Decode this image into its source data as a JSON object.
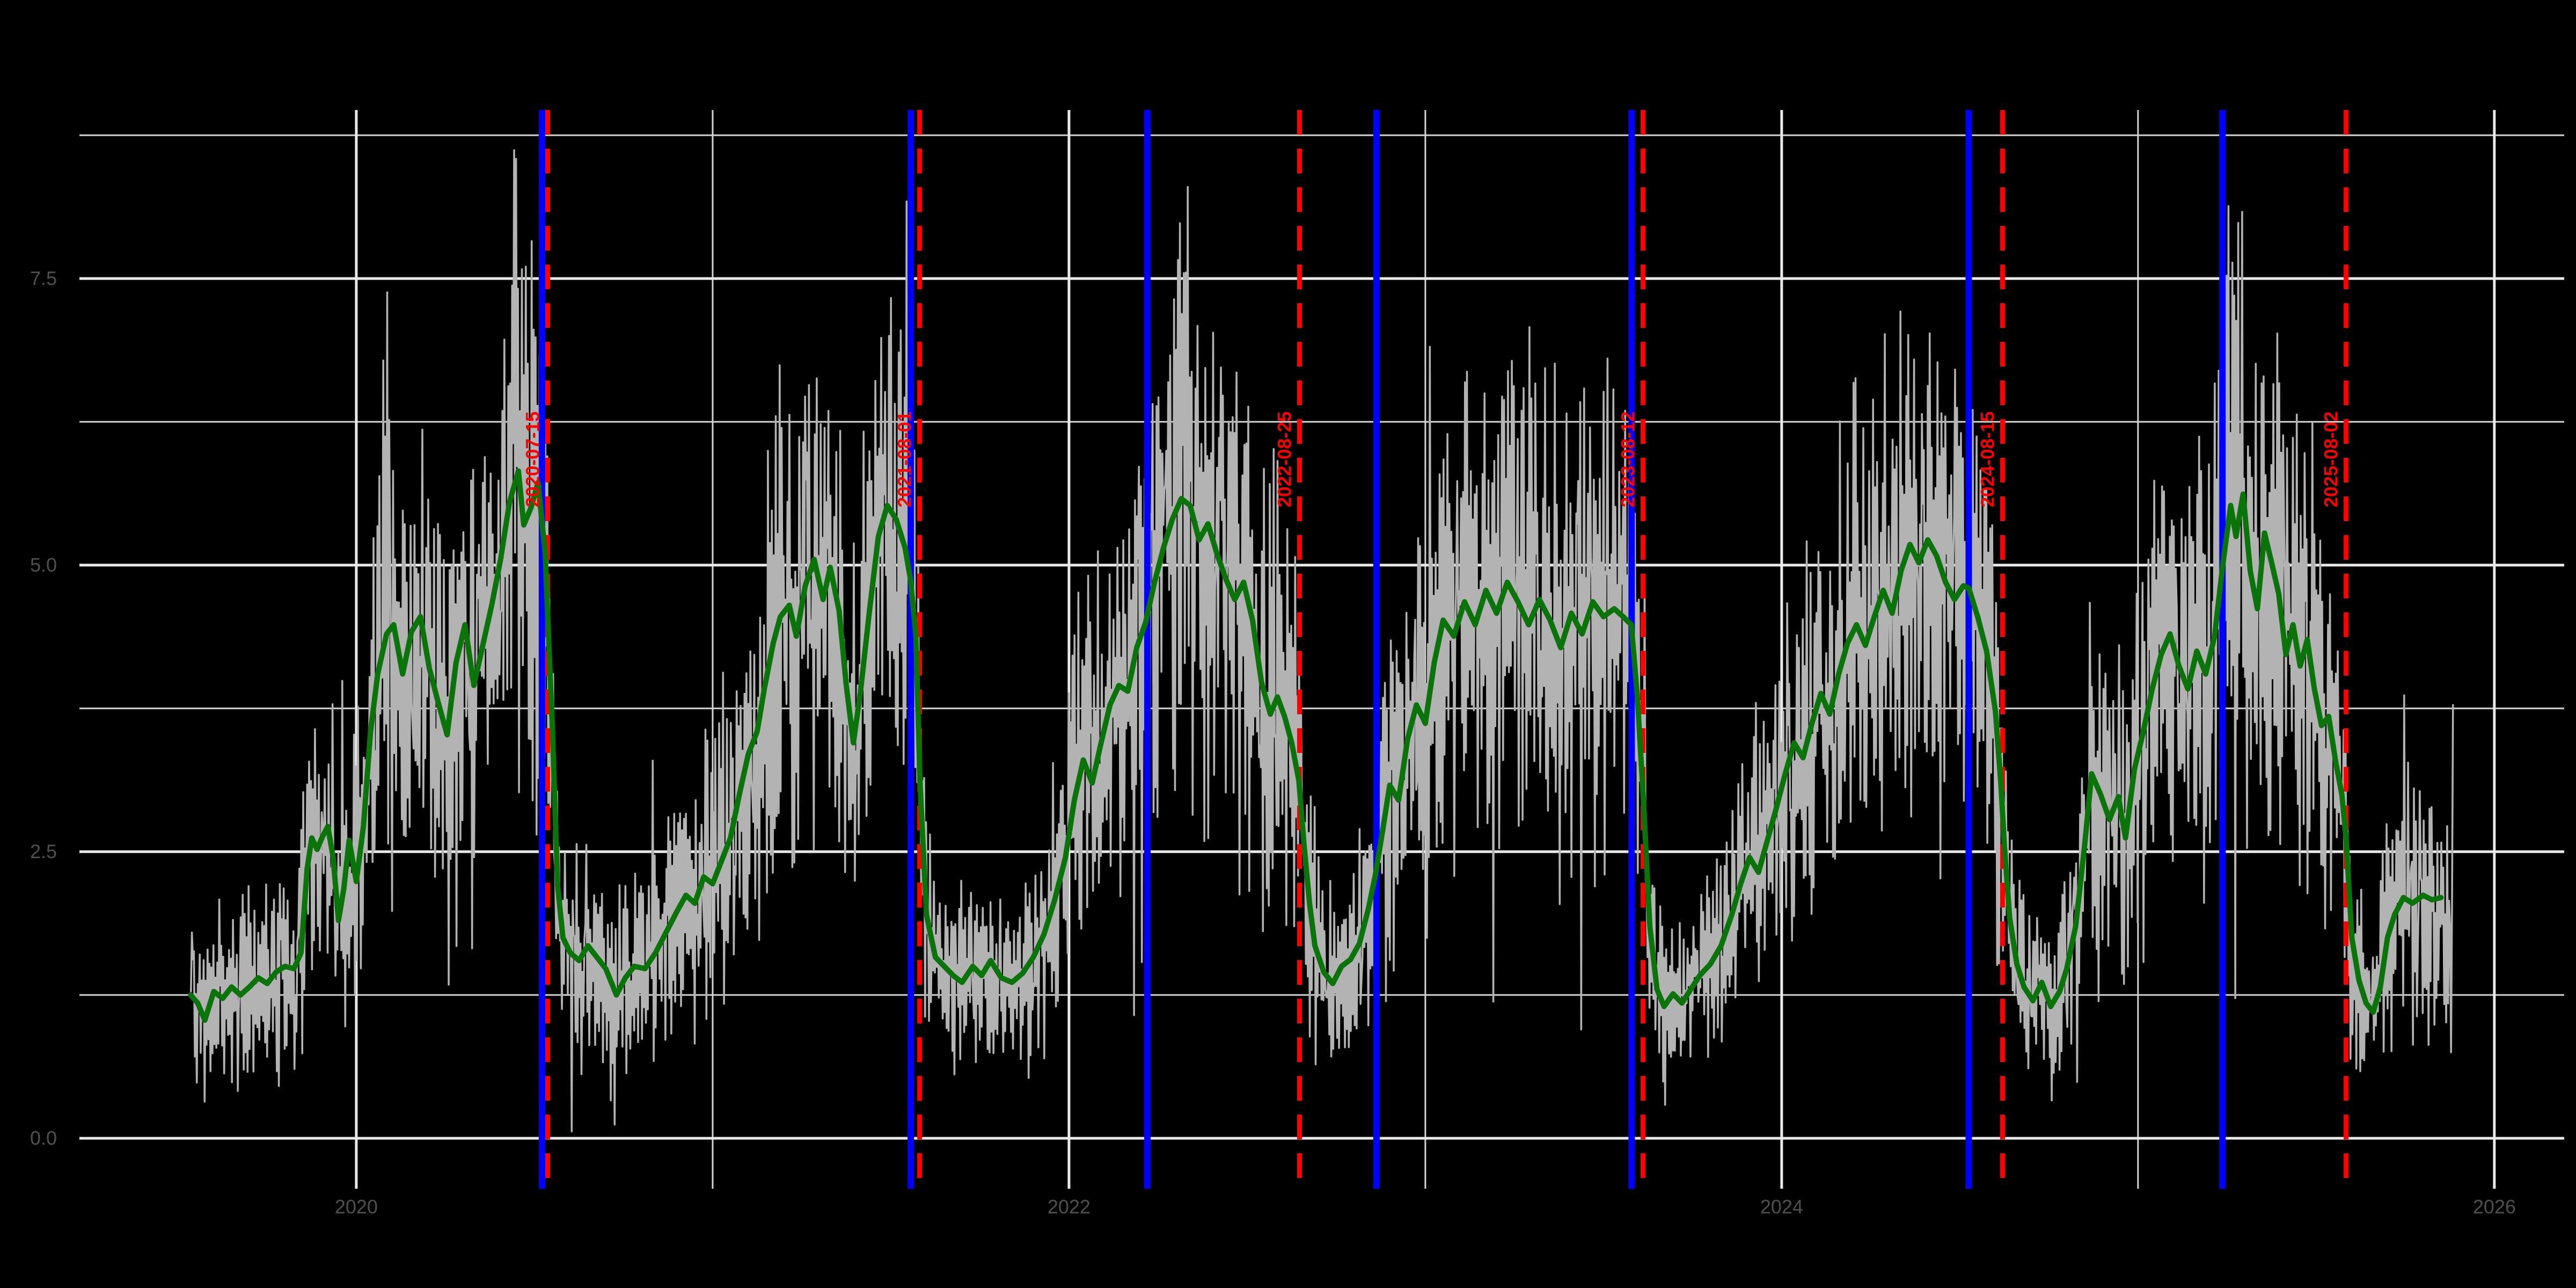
{
  "figure": {
    "background_color": "#000000",
    "colors": {
      "grid_major": "#e9e9e9",
      "grid_minor": "#d4d4d4",
      "daily_series": "#b3b3b3",
      "smoothed_series": "#0a730a",
      "event_line_blue": "#0000ff",
      "event_line_red": "#ff0000",
      "tick_label": "#4f4f4f",
      "event_label": "#ff0000"
    }
  },
  "chart_data": {
    "type": "line",
    "title": "",
    "xlabel": "",
    "ylabel": "",
    "grid": "on",
    "legend": "none",
    "xlim": [
      2019.223,
      2026.196
    ],
    "ylim": [
      -0.44,
      8.97
    ],
    "x_axis": {
      "major_ticks": [
        {
          "value": 2020,
          "label": "2020"
        },
        {
          "value": 2022,
          "label": "2022"
        },
        {
          "value": 2024,
          "label": "2024"
        },
        {
          "value": 2026,
          "label": "2026"
        }
      ],
      "minor_ticks": [
        2021,
        2023,
        2025
      ]
    },
    "y_axis": {
      "major_ticks": [
        {
          "value": 0.0,
          "label": "0.0"
        },
        {
          "value": 2.5,
          "label": "2.5"
        },
        {
          "value": 5.0,
          "label": "5.0"
        },
        {
          "value": 7.5,
          "label": "7.5"
        }
      ],
      "minor_ticks": [
        1.25,
        3.75,
        6.25,
        8.75
      ]
    },
    "series": [
      {
        "name": "smoothed",
        "color": "#0a730a",
        "points": [
          [
            2019.535,
            1.25
          ],
          [
            2019.555,
            1.18
          ],
          [
            2019.575,
            1.03
          ],
          [
            2019.6,
            1.28
          ],
          [
            2019.625,
            1.22
          ],
          [
            2019.65,
            1.32
          ],
          [
            2019.675,
            1.25
          ],
          [
            2019.7,
            1.32
          ],
          [
            2019.725,
            1.4
          ],
          [
            2019.75,
            1.35
          ],
          [
            2019.775,
            1.45
          ],
          [
            2019.8,
            1.5
          ],
          [
            2019.825,
            1.48
          ],
          [
            2019.845,
            1.62
          ],
          [
            2019.862,
            2.35
          ],
          [
            2019.875,
            2.62
          ],
          [
            2019.89,
            2.52
          ],
          [
            2019.905,
            2.63
          ],
          [
            2019.92,
            2.72
          ],
          [
            2019.935,
            2.45
          ],
          [
            2019.95,
            1.9
          ],
          [
            2019.965,
            2.18
          ],
          [
            2019.98,
            2.6
          ],
          [
            2020.0,
            2.24
          ],
          [
            2020.02,
            2.72
          ],
          [
            2020.04,
            3.55
          ],
          [
            2020.06,
            4.05
          ],
          [
            2020.085,
            4.4
          ],
          [
            2020.105,
            4.48
          ],
          [
            2020.13,
            4.05
          ],
          [
            2020.155,
            4.42
          ],
          [
            2020.18,
            4.55
          ],
          [
            2020.205,
            4.1
          ],
          [
            2020.23,
            3.8
          ],
          [
            2020.255,
            3.52
          ],
          [
            2020.28,
            4.15
          ],
          [
            2020.305,
            4.48
          ],
          [
            2020.33,
            3.95
          ],
          [
            2020.355,
            4.3
          ],
          [
            2020.38,
            4.65
          ],
          [
            2020.405,
            5.05
          ],
          [
            2020.43,
            5.55
          ],
          [
            2020.455,
            5.82
          ],
          [
            2020.47,
            5.35
          ],
          [
            2020.49,
            5.5
          ],
          [
            2020.51,
            5.72
          ],
          [
            2020.53,
            5.1
          ],
          [
            2020.55,
            3.6
          ],
          [
            2020.565,
            2.2
          ],
          [
            2020.58,
            1.75
          ],
          [
            2020.6,
            1.62
          ],
          [
            2020.625,
            1.55
          ],
          [
            2020.65,
            1.68
          ],
          [
            2020.675,
            1.58
          ],
          [
            2020.7,
            1.48
          ],
          [
            2020.73,
            1.25
          ],
          [
            2020.755,
            1.4
          ],
          [
            2020.78,
            1.5
          ],
          [
            2020.81,
            1.48
          ],
          [
            2020.84,
            1.62
          ],
          [
            2020.87,
            1.8
          ],
          [
            2020.9,
            1.98
          ],
          [
            2020.925,
            2.12
          ],
          [
            2020.95,
            2.05
          ],
          [
            2020.975,
            2.28
          ],
          [
            2021.0,
            2.22
          ],
          [
            2021.025,
            2.42
          ],
          [
            2021.05,
            2.62
          ],
          [
            2021.075,
            3.0
          ],
          [
            2021.1,
            3.35
          ],
          [
            2021.125,
            3.55
          ],
          [
            2021.145,
            3.92
          ],
          [
            2021.17,
            4.32
          ],
          [
            2021.19,
            4.55
          ],
          [
            2021.215,
            4.65
          ],
          [
            2021.235,
            4.38
          ],
          [
            2021.26,
            4.82
          ],
          [
            2021.285,
            5.05
          ],
          [
            2021.31,
            4.7
          ],
          [
            2021.33,
            4.98
          ],
          [
            2021.355,
            4.6
          ],
          [
            2021.375,
            3.95
          ],
          [
            2021.395,
            3.45
          ],
          [
            2021.415,
            3.9
          ],
          [
            2021.44,
            4.6
          ],
          [
            2021.465,
            5.25
          ],
          [
            2021.49,
            5.52
          ],
          [
            2021.515,
            5.4
          ],
          [
            2021.54,
            5.15
          ],
          [
            2021.555,
            4.88
          ],
          [
            2021.57,
            4.4
          ],
          [
            2021.582,
            3.1
          ],
          [
            2021.6,
            1.95
          ],
          [
            2021.625,
            1.58
          ],
          [
            2021.65,
            1.5
          ],
          [
            2021.675,
            1.42
          ],
          [
            2021.7,
            1.36
          ],
          [
            2021.73,
            1.5
          ],
          [
            2021.755,
            1.42
          ],
          [
            2021.78,
            1.55
          ],
          [
            2021.81,
            1.4
          ],
          [
            2021.84,
            1.36
          ],
          [
            2021.87,
            1.44
          ],
          [
            2021.9,
            1.58
          ],
          [
            2021.93,
            1.78
          ],
          [
            2021.96,
            2.08
          ],
          [
            2021.99,
            2.45
          ],
          [
            2022.015,
            2.95
          ],
          [
            2022.04,
            3.3
          ],
          [
            2022.065,
            3.1
          ],
          [
            2022.09,
            3.45
          ],
          [
            2022.115,
            3.78
          ],
          [
            2022.14,
            3.95
          ],
          [
            2022.165,
            3.9
          ],
          [
            2022.19,
            4.28
          ],
          [
            2022.215,
            4.5
          ],
          [
            2022.24,
            4.85
          ],
          [
            2022.265,
            5.15
          ],
          [
            2022.29,
            5.4
          ],
          [
            2022.315,
            5.58
          ],
          [
            2022.34,
            5.52
          ],
          [
            2022.365,
            5.22
          ],
          [
            2022.39,
            5.36
          ],
          [
            2022.415,
            5.1
          ],
          [
            2022.44,
            4.88
          ],
          [
            2022.465,
            4.7
          ],
          [
            2022.49,
            4.85
          ],
          [
            2022.515,
            4.52
          ],
          [
            2022.54,
            3.98
          ],
          [
            2022.565,
            3.7
          ],
          [
            2022.585,
            3.85
          ],
          [
            2022.605,
            3.68
          ],
          [
            2022.625,
            3.45
          ],
          [
            2022.645,
            3.12
          ],
          [
            2022.66,
            2.55
          ],
          [
            2022.675,
            2.05
          ],
          [
            2022.69,
            1.68
          ],
          [
            2022.715,
            1.45
          ],
          [
            2022.74,
            1.35
          ],
          [
            2022.765,
            1.5
          ],
          [
            2022.79,
            1.56
          ],
          [
            2022.815,
            1.7
          ],
          [
            2022.84,
            2.0
          ],
          [
            2022.86,
            2.3
          ],
          [
            2022.88,
            2.68
          ],
          [
            2022.9,
            3.08
          ],
          [
            2022.925,
            2.95
          ],
          [
            2022.95,
            3.48
          ],
          [
            2022.975,
            3.78
          ],
          [
            2023.0,
            3.62
          ],
          [
            2023.025,
            4.15
          ],
          [
            2023.05,
            4.52
          ],
          [
            2023.08,
            4.38
          ],
          [
            2023.11,
            4.68
          ],
          [
            2023.14,
            4.48
          ],
          [
            2023.17,
            4.78
          ],
          [
            2023.2,
            4.58
          ],
          [
            2023.23,
            4.85
          ],
          [
            2023.26,
            4.68
          ],
          [
            2023.29,
            4.48
          ],
          [
            2023.32,
            4.7
          ],
          [
            2023.35,
            4.52
          ],
          [
            2023.38,
            4.28
          ],
          [
            2023.41,
            4.58
          ],
          [
            2023.44,
            4.4
          ],
          [
            2023.47,
            4.68
          ],
          [
            2023.5,
            4.55
          ],
          [
            2023.53,
            4.62
          ],
          [
            2023.555,
            4.55
          ],
          [
            2023.578,
            4.48
          ],
          [
            2023.595,
            3.85
          ],
          [
            2023.612,
            2.95
          ],
          [
            2023.63,
            1.85
          ],
          [
            2023.65,
            1.3
          ],
          [
            2023.67,
            1.15
          ],
          [
            2023.695,
            1.26
          ],
          [
            2023.72,
            1.18
          ],
          [
            2023.745,
            1.3
          ],
          [
            2023.77,
            1.42
          ],
          [
            2023.8,
            1.52
          ],
          [
            2023.83,
            1.68
          ],
          [
            2023.86,
            1.95
          ],
          [
            2023.885,
            2.22
          ],
          [
            2023.91,
            2.45
          ],
          [
            2023.935,
            2.32
          ],
          [
            2023.96,
            2.6
          ],
          [
            2023.985,
            2.88
          ],
          [
            2024.01,
            3.18
          ],
          [
            2024.035,
            3.45
          ],
          [
            2024.06,
            3.32
          ],
          [
            2024.085,
            3.62
          ],
          [
            2024.11,
            3.88
          ],
          [
            2024.135,
            3.7
          ],
          [
            2024.16,
            4.05
          ],
          [
            2024.185,
            4.32
          ],
          [
            2024.21,
            4.48
          ],
          [
            2024.235,
            4.3
          ],
          [
            2024.26,
            4.55
          ],
          [
            2024.285,
            4.78
          ],
          [
            2024.31,
            4.58
          ],
          [
            2024.335,
            4.95
          ],
          [
            2024.36,
            5.18
          ],
          [
            2024.385,
            5.02
          ],
          [
            2024.41,
            5.22
          ],
          [
            2024.435,
            5.08
          ],
          [
            2024.46,
            4.85
          ],
          [
            2024.485,
            4.7
          ],
          [
            2024.51,
            4.82
          ],
          [
            2024.525,
            4.8
          ],
          [
            2024.55,
            4.55
          ],
          [
            2024.575,
            4.25
          ],
          [
            2024.6,
            3.72
          ],
          [
            2024.615,
            3.1
          ],
          [
            2024.625,
            2.55
          ],
          [
            2024.64,
            1.92
          ],
          [
            2024.66,
            1.52
          ],
          [
            2024.68,
            1.32
          ],
          [
            2024.705,
            1.2
          ],
          [
            2024.73,
            1.36
          ],
          [
            2024.755,
            1.15
          ],
          [
            2024.78,
            1.28
          ],
          [
            2024.8,
            1.48
          ],
          [
            2024.825,
            1.85
          ],
          [
            2024.85,
            2.55
          ],
          [
            2024.87,
            3.18
          ],
          [
            2024.895,
            3.0
          ],
          [
            2024.92,
            2.78
          ],
          [
            2024.945,
            2.98
          ],
          [
            2024.965,
            2.62
          ],
          [
            2024.99,
            3.22
          ],
          [
            2025.015,
            3.55
          ],
          [
            2025.04,
            3.92
          ],
          [
            2025.065,
            4.22
          ],
          [
            2025.09,
            4.4
          ],
          [
            2025.115,
            4.12
          ],
          [
            2025.14,
            3.92
          ],
          [
            2025.165,
            4.25
          ],
          [
            2025.19,
            4.05
          ],
          [
            2025.215,
            4.38
          ],
          [
            2025.237,
            4.98
          ],
          [
            2025.26,
            5.52
          ],
          [
            2025.275,
            5.25
          ],
          [
            2025.295,
            5.62
          ],
          [
            2025.315,
            4.95
          ],
          [
            2025.335,
            4.62
          ],
          [
            2025.355,
            5.28
          ],
          [
            2025.375,
            5.02
          ],
          [
            2025.395,
            4.75
          ],
          [
            2025.415,
            4.22
          ],
          [
            2025.435,
            4.48
          ],
          [
            2025.455,
            4.12
          ],
          [
            2025.475,
            4.35
          ],
          [
            2025.495,
            3.92
          ],
          [
            2025.515,
            3.6
          ],
          [
            2025.535,
            3.68
          ],
          [
            2025.555,
            3.28
          ],
          [
            2025.572,
            3.0
          ],
          [
            2025.584,
            2.62
          ],
          [
            2025.6,
            1.75
          ],
          [
            2025.62,
            1.38
          ],
          [
            2025.64,
            1.18
          ],
          [
            2025.66,
            1.1
          ],
          [
            2025.68,
            1.32
          ],
          [
            2025.7,
            1.75
          ],
          [
            2025.72,
            1.95
          ],
          [
            2025.745,
            2.1
          ],
          [
            2025.77,
            2.05
          ],
          [
            2025.8,
            2.12
          ],
          [
            2025.825,
            2.08
          ],
          [
            2025.85,
            2.1
          ]
        ]
      },
      {
        "name": "daily",
        "color": "#b3b3b3",
        "derived_from": "smoothed",
        "start": 2019.536,
        "end": 2025.885,
        "step_days": 1,
        "noise": {
          "seed": 7,
          "amp_base": 0.32,
          "amp_scale": 0.5,
          "spike_prob": 0.06
        },
        "value_clamp": [
          0.06,
          8.62
        ],
        "tail_values": [
          0.75,
          2.05,
          3.78
        ]
      }
    ],
    "event_lines": {
      "blue_solid": [
        {
          "t": 2020.521
        },
        {
          "t": 2021.556
        },
        {
          "t": 2022.22
        },
        {
          "t": 2022.863
        },
        {
          "t": 2023.579
        },
        {
          "t": 2024.525
        },
        {
          "t": 2025.237
        }
      ],
      "red_dashed": [
        {
          "t": 2020.537,
          "label": "2020-07-15"
        },
        {
          "t": 2021.581,
          "label": "2021-08-01"
        },
        {
          "t": 2022.647,
          "label": "2022-08-25"
        },
        {
          "t": 2023.611,
          "label": "2023-08-12"
        },
        {
          "t": 2024.62,
          "label": "2024-08-15"
        },
        {
          "t": 2025.584,
          "label": "2025-08-02"
        }
      ]
    }
  }
}
